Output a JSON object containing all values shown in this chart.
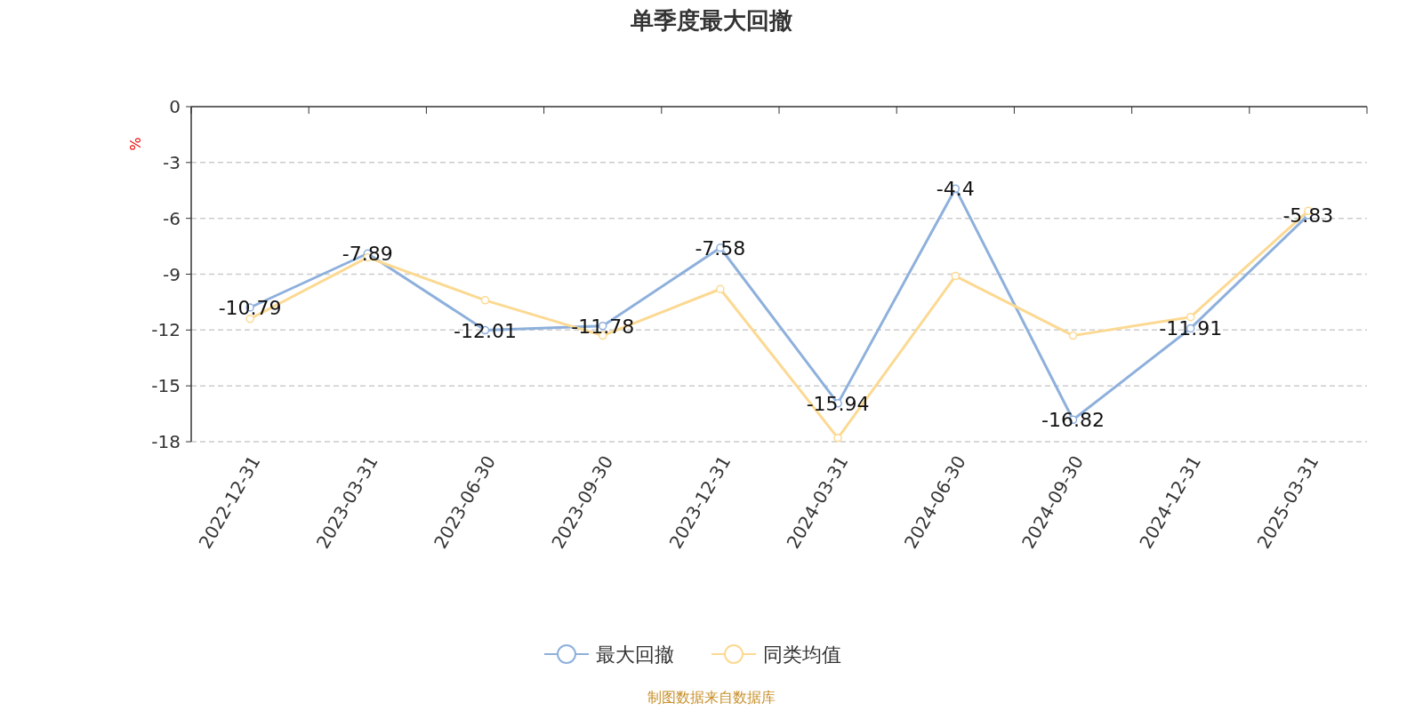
{
  "chart_data": {
    "type": "line",
    "title": "单季度最大回撤",
    "ylabel": "%",
    "categories": [
      "2022-12-31",
      "2023-03-31",
      "2023-06-30",
      "2023-09-30",
      "2023-12-31",
      "2024-03-31",
      "2024-06-30",
      "2024-09-30",
      "2024-12-31",
      "2025-03-31"
    ],
    "series": [
      {
        "name": "最大回撤",
        "color": "#8eb0dc",
        "values": [
          -10.79,
          -7.89,
          -12.01,
          -11.78,
          -7.58,
          -15.94,
          -4.4,
          -16.82,
          -11.91,
          -5.83
        ],
        "value_labels": [
          "-10.79",
          "-7.89",
          "-12.01",
          "-11.78",
          "-7.58",
          "-15.94",
          "-4.4",
          "-16.82",
          "-11.91",
          "-5.83"
        ]
      },
      {
        "name": "同类均值",
        "color": "#fcd992",
        "values": [
          -11.4,
          -8.1,
          -10.4,
          -12.3,
          -9.8,
          -17.8,
          -9.1,
          -12.3,
          -11.3,
          -5.6
        ]
      }
    ],
    "ylim": [
      -18,
      0
    ],
    "yticks": [
      -18,
      -15,
      -12,
      -9,
      -6,
      -3,
      0
    ],
    "grid": "y",
    "legend": "bottom",
    "marker": "circle",
    "annotations": [
      "制图数据来自数据库"
    ]
  }
}
